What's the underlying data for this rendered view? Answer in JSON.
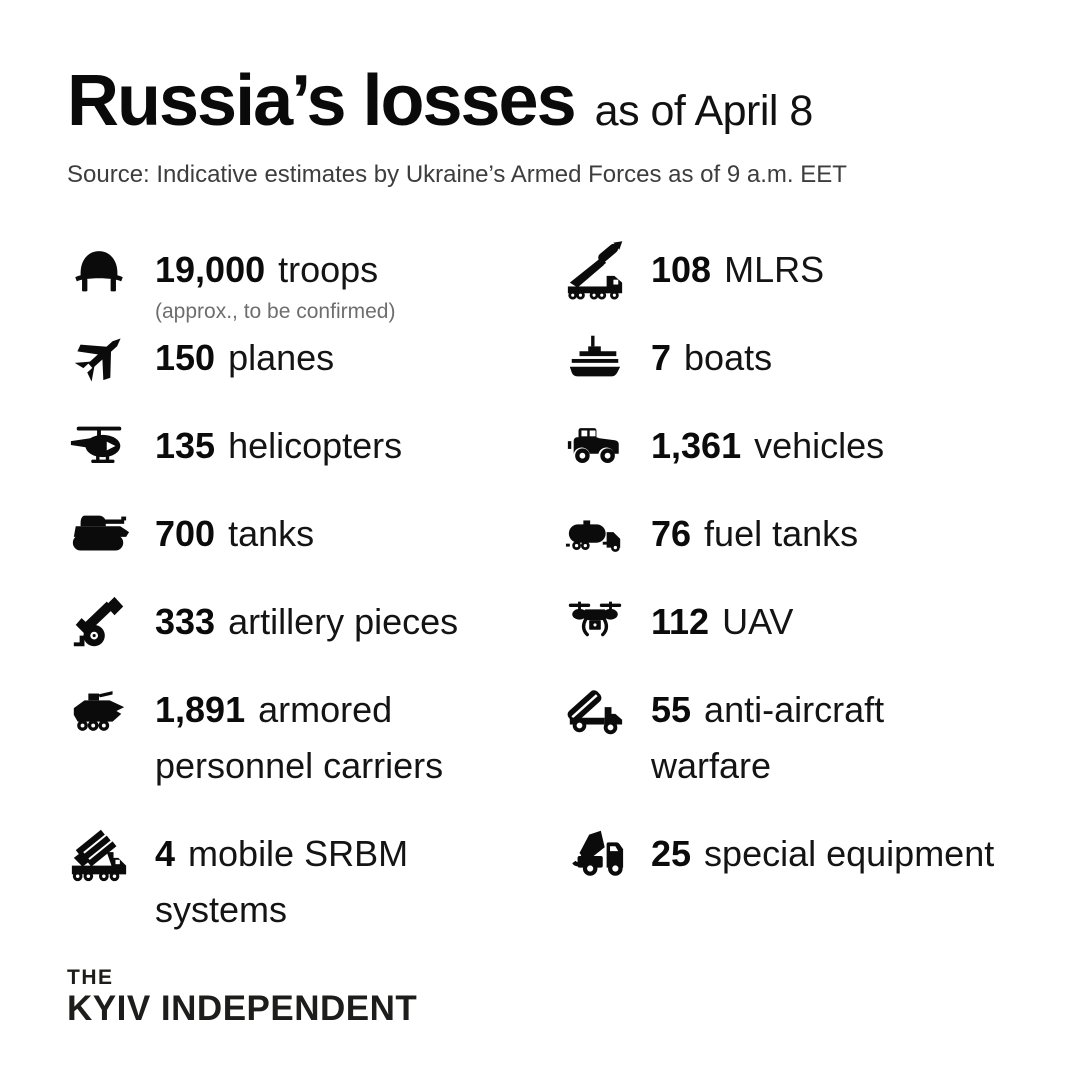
{
  "page": {
    "background": "#ffffff",
    "text_color": "#0d0d0d",
    "muted_color": "#6e6e6e",
    "source_color": "#3d3d3d"
  },
  "header": {
    "title": "Russia’s losses",
    "subtitle": "as of April 8",
    "source": "Source: Indicative estimates by Ukraine’s Armed Forces as of 9 a.m. EET"
  },
  "stats": {
    "left": [
      {
        "value": "19,000",
        "label": "troops",
        "note": "(approx., to be confirmed)",
        "icon": "military-helmet"
      },
      {
        "value": "150",
        "label": "planes",
        "icon": "fighter-jet"
      },
      {
        "value": "135",
        "label": "helicopters",
        "icon": "helicopter"
      },
      {
        "value": "700",
        "label": "tanks",
        "icon": "tank"
      },
      {
        "value": "333",
        "label": "artillery pieces",
        "icon": "howitzer"
      },
      {
        "value": "1,891",
        "label": "armored\npersonnel carriers",
        "icon": "apc"
      },
      {
        "value": "4",
        "label": "mobile SRBM\nsystems",
        "icon": "mlrs-truck"
      }
    ],
    "right": [
      {
        "value": "108",
        "label": "MLRS",
        "icon": "mlrs-launch"
      },
      {
        "value": "7",
        "label": "boats",
        "icon": "warship"
      },
      {
        "value": "1,361",
        "label": "vehicles",
        "icon": "military-jeep"
      },
      {
        "value": "76",
        "label": "fuel tanks",
        "icon": "fuel-tanker"
      },
      {
        "value": "112",
        "label": "UAV",
        "icon": "quadcopter-drone"
      },
      {
        "value": "55",
        "label": "anti-aircraft\nwarfare",
        "icon": "anti-aircraft-launcher"
      },
      {
        "value": "25",
        "label": "special equipment",
        "icon": "crane-truck"
      }
    ]
  },
  "footer": {
    "logo_line1": "THE",
    "logo_line2": "KYIV INDEPENDENT"
  },
  "chart_data": {
    "type": "table",
    "title": "Russia’s losses",
    "subtitle": "as of April 8",
    "source": "Source: Indicative estimates by Ukraine’s Armed Forces as of 9 a.m. EET",
    "categories": [
      "troops",
      "planes",
      "helicopters",
      "tanks",
      "artillery pieces",
      "armored personnel carriers",
      "mobile SRBM systems",
      "MLRS",
      "boats",
      "vehicles",
      "fuel tanks",
      "UAV",
      "anti-aircraft warfare",
      "special equipment"
    ],
    "values": [
      19000,
      150,
      135,
      700,
      333,
      1891,
      4,
      108,
      7,
      1361,
      76,
      112,
      55,
      25
    ],
    "notes": {
      "troops": "(approx., to be confirmed)"
    }
  }
}
